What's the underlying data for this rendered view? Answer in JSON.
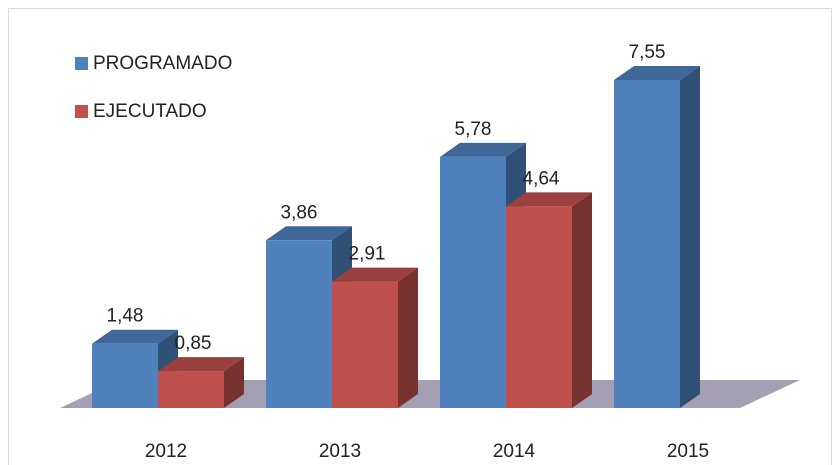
{
  "chart_data": {
    "type": "bar3d",
    "categories": [
      "2012",
      "2013",
      "2014",
      "2015"
    ],
    "series": [
      {
        "name": "PROGRAMADO",
        "color": "#4f81bd",
        "values": [
          1.48,
          3.86,
          5.78,
          7.55
        ],
        "value_labels": [
          "1,48",
          "3,86",
          "5,78",
          "7,55"
        ]
      },
      {
        "name": "EJECUTADO",
        "color": "#c0504d",
        "values": [
          0.85,
          2.91,
          4.64,
          null
        ],
        "value_labels": [
          "0,85",
          "2,91",
          "4,64",
          null
        ]
      }
    ],
    "legend": "top-left"
  }
}
